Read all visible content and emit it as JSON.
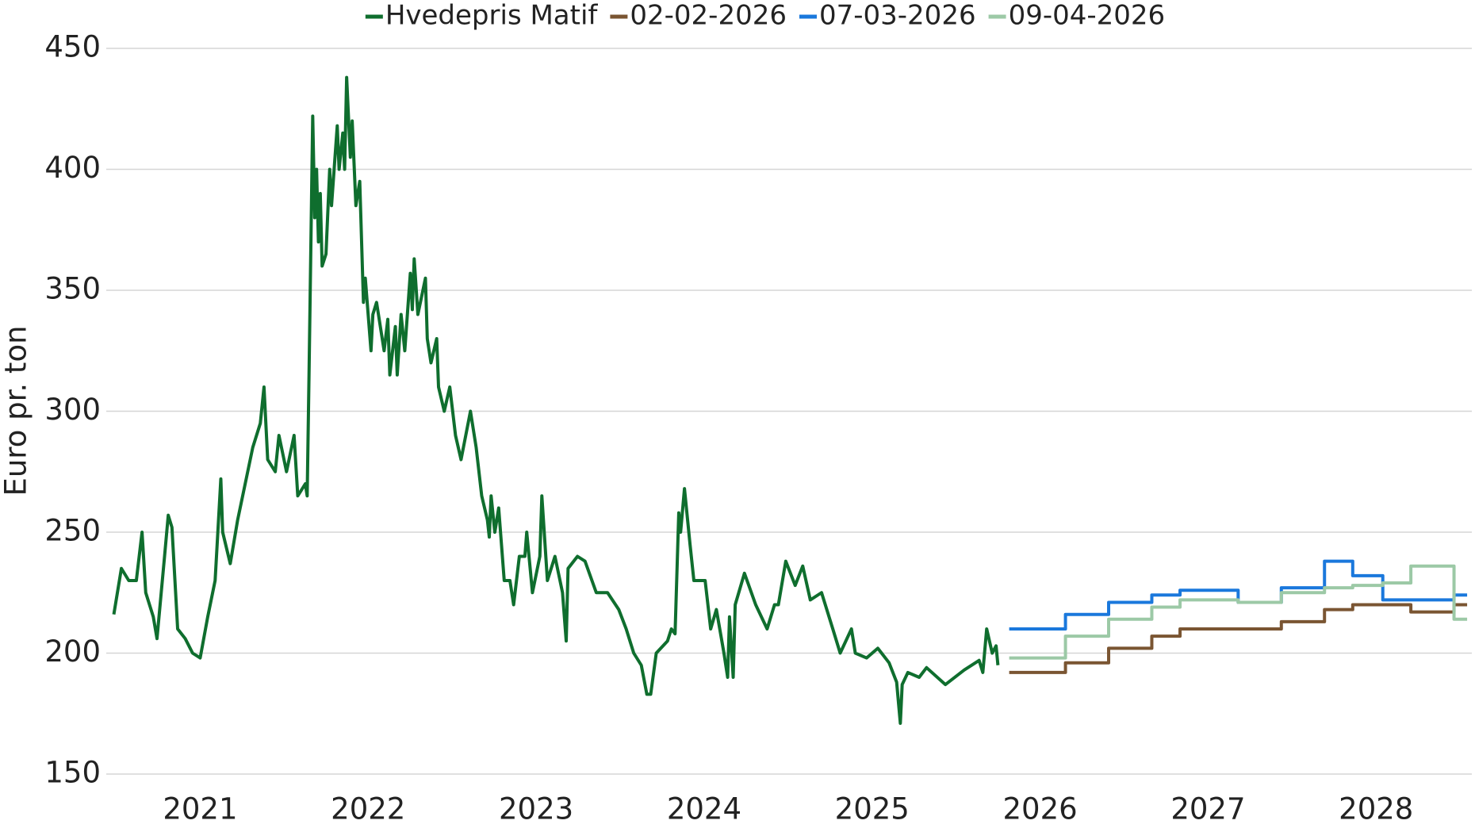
{
  "chart_data": {
    "type": "line",
    "ylabel": "Euro pr. ton",
    "xlim": [
      2020.441,
      2028.57
    ],
    "xticks": [
      2021,
      2022,
      2023,
      2024,
      2025,
      2026,
      2027,
      2028
    ],
    "ylim": [
      150,
      450
    ],
    "yticks": [
      150,
      200,
      250,
      300,
      350,
      400,
      450
    ],
    "grid": true,
    "legend": "top",
    "series": [
      {
        "name": "Hvedepris Matif",
        "color": "#0f6e2e",
        "drawstyle": "line",
        "x": [
          2020.486,
          2020.531,
          2020.575,
          2020.62,
          2020.654,
          2020.676,
          2020.721,
          2020.743,
          2020.788,
          2020.81,
          2020.832,
          2020.866,
          2020.911,
          2020.955,
          2021.0,
          2021.045,
          2021.089,
          2021.123,
          2021.134,
          2021.179,
          2021.223,
          2021.268,
          2021.313,
          2021.358,
          2021.38,
          2021.402,
          2021.447,
          2021.469,
          2021.514,
          2021.559,
          2021.581,
          2021.626,
          2021.637,
          2021.648,
          2021.67,
          2021.682,
          2021.693,
          2021.704,
          2021.715,
          2021.726,
          2021.749,
          2021.771,
          2021.782,
          2021.816,
          2021.827,
          2021.849,
          2021.86,
          2021.872,
          2021.894,
          2021.905,
          2021.927,
          2021.95,
          2021.972,
          2021.983,
          2022.017,
          2022.028,
          2022.05,
          2022.095,
          2022.117,
          2022.129,
          2022.162,
          2022.173,
          2022.196,
          2022.218,
          2022.251,
          2022.263,
          2022.274,
          2022.296,
          2022.341,
          2022.352,
          2022.374,
          2022.408,
          2022.419,
          2022.453,
          2022.486,
          2022.52,
          2022.553,
          2022.609,
          2022.643,
          2022.676,
          2022.71,
          2022.721,
          2022.732,
          2022.754,
          2022.777,
          2022.81,
          2022.844,
          2022.866,
          2022.9,
          2022.933,
          2022.944,
          2022.978,
          2023.022,
          2023.034,
          2023.067,
          2023.112,
          2023.157,
          2023.179,
          2023.19,
          2023.246,
          2023.291,
          2023.358,
          2023.425,
          2023.492,
          2023.536,
          2023.581,
          2023.626,
          2023.659,
          2023.682,
          2023.715,
          2023.782,
          2023.805,
          2023.827,
          2023.849,
          2023.86,
          2023.883,
          2023.916,
          2023.939,
          2024.006,
          2024.039,
          2024.073,
          2024.118,
          2024.14,
          2024.151,
          2024.173,
          2024.185,
          2024.24,
          2024.307,
          2024.375,
          2024.419,
          2024.442,
          2024.486,
          2024.542,
          2024.587,
          2024.632,
          2024.699,
          2024.766,
          2024.81,
          2024.877,
          2024.9,
          2024.967,
          2025.034,
          2025.101,
          2025.146,
          2025.168,
          2025.179,
          2025.213,
          2025.28,
          2025.324,
          2025.436,
          2025.548,
          2025.637,
          2025.659,
          2025.682,
          2025.715,
          2025.738,
          2025.749
        ],
        "values": [
          216,
          235,
          230,
          230,
          250,
          225,
          215,
          206,
          240,
          257,
          252,
          210,
          206,
          200,
          198,
          215,
          230,
          272,
          250,
          237,
          255,
          270,
          285,
          295,
          310,
          280,
          275,
          290,
          275,
          290,
          265,
          270,
          265,
          315,
          422,
          380,
          400,
          370,
          390,
          360,
          365,
          400,
          385,
          418,
          400,
          415,
          400,
          438,
          405,
          420,
          385,
          395,
          345,
          355,
          325,
          340,
          345,
          325,
          338,
          315,
          335,
          315,
          340,
          325,
          357,
          342,
          363,
          340,
          355,
          330,
          320,
          330,
          310,
          300,
          310,
          290,
          280,
          300,
          285,
          265,
          255,
          248,
          265,
          250,
          260,
          230,
          230,
          220,
          240,
          240,
          250,
          225,
          240,
          265,
          230,
          240,
          225,
          205,
          235,
          240,
          238,
          225,
          225,
          218,
          210,
          200,
          195,
          183,
          183,
          200,
          205,
          210,
          208,
          258,
          250,
          268,
          245,
          230,
          230,
          210,
          218,
          200,
          190,
          215,
          190,
          220,
          233,
          220,
          210,
          220,
          220,
          238,
          228,
          236,
          222,
          225,
          210,
          200,
          210,
          200,
          198,
          202,
          196,
          188,
          171,
          187,
          192,
          190,
          194,
          187,
          193,
          197,
          192,
          210,
          200,
          203,
          195
        ]
      },
      {
        "name": "02-02-2026",
        "color": "#7a5532",
        "drawstyle": "steps-post",
        "x": [
          2025.816,
          2026.151,
          2026.408,
          2026.665,
          2026.833,
          2027.436,
          2027.693,
          2027.861,
          2028.207,
          2028.464,
          2028.542
        ],
        "values": [
          192,
          196,
          202,
          207,
          210,
          213,
          218,
          220,
          217,
          220,
          220
        ]
      },
      {
        "name": "07-03-2026",
        "color": "#1a78dc",
        "drawstyle": "steps-post",
        "x": [
          2025.816,
          2026.151,
          2026.408,
          2026.665,
          2026.833,
          2027.179,
          2027.436,
          2027.693,
          2027.861,
          2028.04,
          2028.464,
          2028.542
        ],
        "values": [
          210,
          216,
          221,
          224,
          226,
          221,
          227,
          238,
          232,
          222,
          224,
          224
        ]
      },
      {
        "name": "09-04-2026",
        "color": "#9cc9a6",
        "drawstyle": "steps-post",
        "x": [
          2025.816,
          2026.151,
          2026.408,
          2026.665,
          2026.833,
          2027.179,
          2027.436,
          2027.693,
          2027.861,
          2028.04,
          2028.207,
          2028.464,
          2028.542
        ],
        "values": [
          198,
          207,
          214,
          219,
          222,
          221,
          225,
          227,
          228,
          229,
          236,
          214,
          214
        ]
      }
    ]
  }
}
